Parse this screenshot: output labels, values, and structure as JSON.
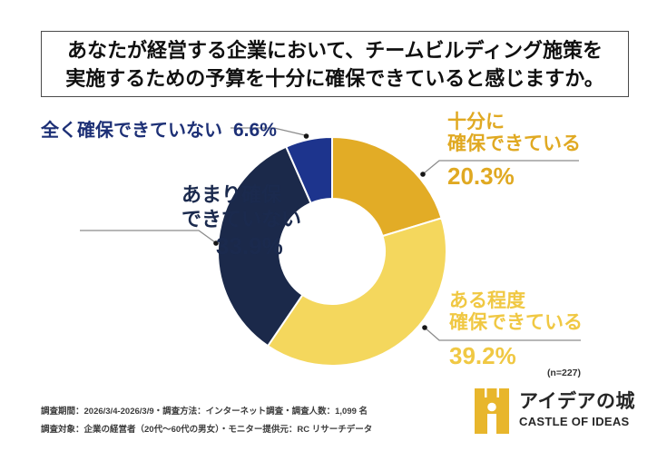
{
  "title": {
    "line1": "あなたが経営する企業において、チームビルディング施策を",
    "line2": "実施するための予算を十分に確保できていると感じますか。"
  },
  "chart_data": {
    "type": "pie",
    "variant": "donut",
    "title": "あなたが経営する企業において、チームビルディング施策を実施するための予算を十分に確保できていると感じますか。",
    "unit": "%",
    "sample_size_label": "(n=227)",
    "start_angle_deg": 0,
    "direction": "clockwise",
    "inner_radius_ratio": 0.46,
    "legend_position": "callout-labels",
    "segments": [
      {
        "key": "fully",
        "label": "十分に確保できている",
        "value": 20.3,
        "color": "#E2AC26"
      },
      {
        "key": "somewhat",
        "label": "ある程度確保できている",
        "value": 39.2,
        "color": "#F4D75D"
      },
      {
        "key": "not-really",
        "label": "あまり確保できていない",
        "value": 33.9,
        "color": "#1B294A"
      },
      {
        "key": "none",
        "label": "全く確保できていない",
        "value": 6.6,
        "color": "#1D348D"
      }
    ]
  },
  "callouts": {
    "fully": {
      "line1": "十分に",
      "line2": "確保できている",
      "pct": "20.3%",
      "color": "#E0A922"
    },
    "somewhat": {
      "line1": "ある程度",
      "line2": "確保できている",
      "pct": "39.2%",
      "color": "#F0C843"
    },
    "not_really": {
      "line1": "あまり確保",
      "line2": "できていない",
      "pct": "33.9%",
      "color": "#1B2A4E"
    },
    "none": {
      "text": "全く確保できていない",
      "pct": "6.6%",
      "color": "#1D3076"
    }
  },
  "annotation": {
    "n_label": "(n=227)"
  },
  "footer": {
    "line1": "調査期間：2026/3/4-2026/3/9・調査方法：インターネット調査・調査人数：1,099 名",
    "line2": "調査対象：企業の経営者（20代～60代の男女）・モニター提供元：RC リサーチデータ"
  },
  "logo": {
    "name": "アイデアの城",
    "subtitle": "CASTLE OF IDEAS",
    "icon": "castle-icon",
    "color": "#E8B62C",
    "text_color": "#262626"
  }
}
